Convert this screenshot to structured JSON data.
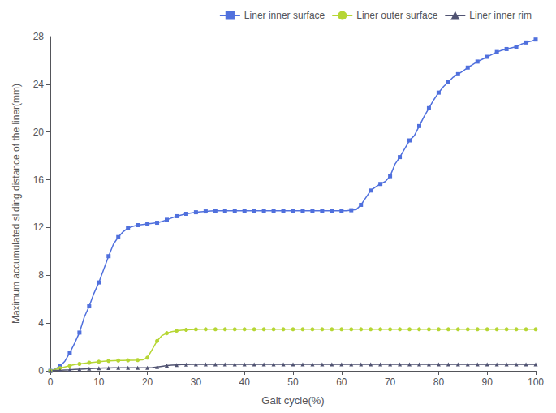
{
  "chart_data": {
    "type": "line",
    "xlabel": "Gait cycle(%)",
    "ylabel": "Maximum accumulated sliding distance of the liner(mm)",
    "xlim": [
      0,
      100
    ],
    "ylim": [
      0,
      28
    ],
    "xticks": [
      0,
      10,
      20,
      30,
      40,
      50,
      60,
      70,
      80,
      90,
      100
    ],
    "yticks": [
      0,
      4,
      8,
      12,
      16,
      20,
      24,
      28
    ],
    "grid": false,
    "legend": "upper right",
    "x": [
      0,
      1,
      2,
      3,
      4,
      5,
      6,
      7,
      8,
      9,
      10,
      11,
      12,
      13,
      14,
      15,
      16,
      17,
      18,
      19,
      20,
      21,
      22,
      23,
      24,
      25,
      26,
      27,
      28,
      29,
      30,
      31,
      32,
      33,
      34,
      35,
      36,
      37,
      38,
      39,
      40,
      41,
      42,
      43,
      44,
      45,
      46,
      47,
      48,
      49,
      50,
      51,
      52,
      53,
      54,
      55,
      56,
      57,
      58,
      59,
      60,
      61,
      62,
      63,
      64,
      65,
      66,
      67,
      68,
      69,
      70,
      71,
      72,
      73,
      74,
      75,
      76,
      77,
      78,
      79,
      80,
      81,
      82,
      83,
      84,
      85,
      86,
      87,
      88,
      89,
      90,
      91,
      92,
      93,
      94,
      95,
      96,
      97,
      98,
      99,
      100
    ],
    "series": [
      {
        "name": "Liner inner surface",
        "marker": "square",
        "values": [
          0,
          0.15,
          0.4,
          0.8,
          1.5,
          2.3,
          3.2,
          4.5,
          5.4,
          6.5,
          7.4,
          8.5,
          9.6,
          10.6,
          11.2,
          11.65,
          11.95,
          12.1,
          12.2,
          12.25,
          12.3,
          12.35,
          12.4,
          12.5,
          12.65,
          12.8,
          12.95,
          13.05,
          13.15,
          13.22,
          13.28,
          13.32,
          13.35,
          13.38,
          13.4,
          13.4,
          13.4,
          13.4,
          13.4,
          13.4,
          13.4,
          13.4,
          13.4,
          13.4,
          13.4,
          13.4,
          13.4,
          13.4,
          13.4,
          13.4,
          13.4,
          13.4,
          13.4,
          13.4,
          13.4,
          13.4,
          13.4,
          13.4,
          13.4,
          13.4,
          13.4,
          13.4,
          13.45,
          13.5,
          13.9,
          14.5,
          15.1,
          15.4,
          15.65,
          15.85,
          16.3,
          17.3,
          17.9,
          18.6,
          19.3,
          19.7,
          20.5,
          21.3,
          22.0,
          22.7,
          23.3,
          23.8,
          24.2,
          24.6,
          24.85,
          25.1,
          25.4,
          25.65,
          25.9,
          26.1,
          26.3,
          26.5,
          26.7,
          26.85,
          26.95,
          27.05,
          27.15,
          27.35,
          27.5,
          27.6,
          27.75
        ]
      },
      {
        "name": "Liner outer surface",
        "marker": "circle",
        "values": [
          0,
          0.12,
          0.22,
          0.32,
          0.42,
          0.52,
          0.58,
          0.63,
          0.68,
          0.72,
          0.76,
          0.8,
          0.83,
          0.85,
          0.86,
          0.87,
          0.88,
          0.89,
          0.9,
          0.92,
          1.1,
          1.8,
          2.5,
          2.95,
          3.15,
          3.28,
          3.35,
          3.4,
          3.43,
          3.45,
          3.47,
          3.48,
          3.48,
          3.48,
          3.48,
          3.48,
          3.48,
          3.48,
          3.48,
          3.48,
          3.48,
          3.48,
          3.48,
          3.48,
          3.48,
          3.48,
          3.48,
          3.48,
          3.48,
          3.48,
          3.48,
          3.48,
          3.48,
          3.48,
          3.48,
          3.48,
          3.48,
          3.48,
          3.48,
          3.48,
          3.48,
          3.48,
          3.48,
          3.48,
          3.48,
          3.48,
          3.48,
          3.48,
          3.48,
          3.48,
          3.48,
          3.48,
          3.48,
          3.48,
          3.48,
          3.48,
          3.48,
          3.48,
          3.48,
          3.48,
          3.48,
          3.48,
          3.48,
          3.48,
          3.48,
          3.48,
          3.48,
          3.48,
          3.48,
          3.48,
          3.48,
          3.48,
          3.48,
          3.48,
          3.48,
          3.48,
          3.48,
          3.48,
          3.48,
          3.48,
          3.48
        ]
      },
      {
        "name": "Liner inner rim",
        "marker": "triangle",
        "values": [
          0,
          0.03,
          0.05,
          0.07,
          0.09,
          0.12,
          0.14,
          0.16,
          0.18,
          0.2,
          0.22,
          0.23,
          0.24,
          0.25,
          0.25,
          0.25,
          0.25,
          0.25,
          0.25,
          0.25,
          0.26,
          0.28,
          0.32,
          0.38,
          0.44,
          0.48,
          0.5,
          0.52,
          0.53,
          0.54,
          0.54,
          0.54,
          0.54,
          0.54,
          0.54,
          0.54,
          0.54,
          0.54,
          0.54,
          0.54,
          0.54,
          0.54,
          0.54,
          0.54,
          0.54,
          0.54,
          0.54,
          0.54,
          0.54,
          0.54,
          0.54,
          0.54,
          0.54,
          0.54,
          0.54,
          0.54,
          0.54,
          0.54,
          0.54,
          0.54,
          0.54,
          0.54,
          0.54,
          0.54,
          0.54,
          0.54,
          0.54,
          0.54,
          0.54,
          0.54,
          0.54,
          0.54,
          0.55,
          0.55,
          0.55,
          0.55,
          0.55,
          0.55,
          0.55,
          0.55,
          0.55,
          0.55,
          0.55,
          0.55,
          0.55,
          0.55,
          0.55,
          0.55,
          0.55,
          0.55,
          0.55,
          0.55,
          0.55,
          0.55,
          0.55,
          0.55,
          0.55,
          0.55,
          0.55,
          0.55,
          0.55
        ]
      }
    ]
  }
}
